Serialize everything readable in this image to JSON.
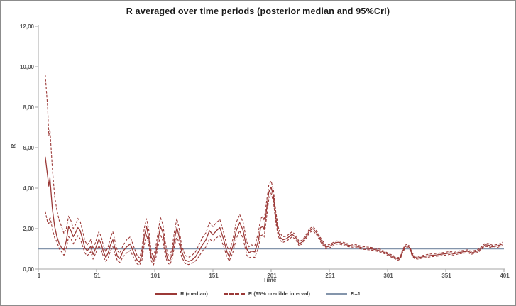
{
  "chart_data": {
    "type": "line",
    "title": "R averaged over time periods (posterior median and 95%CrI)",
    "xlabel": "Time",
    "ylabel": "R",
    "xlim": [
      1,
      401
    ],
    "ylim": [
      0,
      12
    ],
    "grid": false,
    "legend_position": "bottom",
    "x_ticks": [
      1,
      51,
      101,
      151,
      201,
      251,
      301,
      351,
      401
    ],
    "x_tick_labels": [
      "1",
      "51",
      "101",
      "151",
      "201",
      "251",
      "301",
      "351",
      "401"
    ],
    "y_ticks": [
      0,
      2,
      4,
      6,
      8,
      10,
      12
    ],
    "y_tick_labels": [
      "0,00",
      "2,00",
      "4,00",
      "6,00",
      "8,00",
      "10,00",
      "12,00"
    ],
    "legend_labels": [
      "R (median)",
      "R (95% credible interval)",
      "R=1"
    ],
    "colors": {
      "series": "#9b3937",
      "reference": "#8495ab",
      "axis": "#a6a6a6",
      "tick_text": "#595959",
      "title_text": "#1a1a1a"
    },
    "reference_line": {
      "name": "R=1",
      "value": 1
    },
    "x": [
      7,
      9,
      10,
      11,
      13,
      15,
      17,
      19,
      21,
      23,
      25,
      27,
      29,
      31,
      33,
      35,
      37,
      39,
      41,
      43,
      45,
      46,
      48,
      50,
      53,
      55,
      57,
      59,
      61,
      63,
      65,
      67,
      69,
      71,
      74,
      77,
      80,
      83,
      86,
      88,
      90,
      92,
      94,
      96,
      98,
      100,
      102,
      104,
      106,
      108,
      110,
      112,
      114,
      116,
      118,
      120,
      122,
      124,
      127,
      130,
      133,
      136,
      139,
      142,
      145,
      148,
      151,
      154,
      157,
      160,
      163,
      165,
      168,
      171,
      174,
      177,
      180,
      182,
      184,
      187,
      190,
      192,
      194,
      195,
      197,
      199,
      201,
      203,
      205,
      207,
      209,
      211,
      214,
      217,
      219,
      222,
      225,
      228,
      231,
      234,
      237,
      240,
      244,
      248,
      252,
      256,
      259,
      263,
      267,
      271,
      275,
      279,
      283,
      287,
      291,
      295,
      299,
      303,
      307,
      310,
      312,
      314,
      316,
      318,
      320,
      322,
      324,
      327,
      331,
      335,
      339,
      343,
      347,
      351,
      355,
      358,
      362,
      366,
      370,
      373,
      376,
      379,
      382,
      385,
      388,
      391,
      394,
      397,
      400
    ],
    "series": [
      {
        "name": "R (median)",
        "style": "solid",
        "values": [
          5.55,
          4.6,
          4.1,
          4.5,
          3.0,
          2.1,
          1.6,
          1.25,
          1.05,
          0.95,
          1.4,
          2.1,
          1.9,
          1.6,
          1.8,
          2.05,
          1.9,
          1.5,
          1.05,
          0.9,
          1.05,
          1.12,
          0.72,
          1.0,
          1.47,
          1.25,
          0.85,
          0.57,
          0.8,
          1.2,
          1.45,
          1.0,
          0.62,
          0.52,
          0.9,
          1.1,
          1.25,
          0.8,
          0.42,
          0.35,
          0.7,
          1.6,
          2.1,
          1.5,
          0.6,
          0.38,
          0.8,
          1.5,
          2.1,
          1.8,
          1.0,
          0.5,
          0.4,
          0.75,
          1.5,
          2.05,
          1.6,
          0.9,
          0.45,
          0.38,
          0.45,
          0.6,
          0.9,
          1.2,
          1.45,
          1.9,
          1.7,
          1.9,
          2.05,
          1.5,
          0.85,
          0.6,
          1.1,
          1.9,
          2.3,
          1.9,
          1.0,
          0.8,
          0.88,
          0.85,
          1.4,
          2.05,
          2.1,
          1.95,
          2.9,
          3.8,
          4.05,
          3.6,
          2.55,
          1.85,
          1.55,
          1.45,
          1.5,
          1.62,
          1.72,
          1.58,
          1.25,
          1.35,
          1.6,
          1.9,
          2.0,
          1.8,
          1.4,
          1.08,
          1.15,
          1.3,
          1.33,
          1.25,
          1.18,
          1.15,
          1.12,
          1.05,
          1.02,
          1.0,
          0.95,
          0.9,
          0.8,
          0.68,
          0.58,
          0.5,
          0.55,
          0.9,
          1.1,
          1.15,
          1.05,
          0.75,
          0.58,
          0.55,
          0.6,
          0.65,
          0.68,
          0.7,
          0.73,
          0.76,
          0.8,
          0.75,
          0.82,
          0.85,
          0.88,
          0.8,
          0.85,
          0.9,
          1.05,
          1.2,
          1.18,
          1.1,
          1.13,
          1.18,
          1.25
        ]
      },
      {
        "name": "R (95% credible interval) lower",
        "style": "dashed",
        "values": [
          2.85,
          2.3,
          2.25,
          2.6,
          2.0,
          1.55,
          1.35,
          1.0,
          0.85,
          0.68,
          1.0,
          1.6,
          1.5,
          1.25,
          1.45,
          1.65,
          1.5,
          1.15,
          0.8,
          0.65,
          0.8,
          0.85,
          0.5,
          0.75,
          1.15,
          0.95,
          0.6,
          0.38,
          0.55,
          0.9,
          1.1,
          0.72,
          0.4,
          0.33,
          0.62,
          0.8,
          0.92,
          0.55,
          0.25,
          0.2,
          0.45,
          1.2,
          1.7,
          1.15,
          0.4,
          0.22,
          0.55,
          1.15,
          1.7,
          1.4,
          0.7,
          0.3,
          0.22,
          0.5,
          1.15,
          1.65,
          1.25,
          0.62,
          0.28,
          0.22,
          0.28,
          0.4,
          0.62,
          0.9,
          1.1,
          1.5,
          1.35,
          1.55,
          1.65,
          1.15,
          0.6,
          0.4,
          0.8,
          1.5,
          1.9,
          1.5,
          0.7,
          0.55,
          0.6,
          0.58,
          1.05,
          1.65,
          1.7,
          1.6,
          2.5,
          3.45,
          3.75,
          3.3,
          2.3,
          1.65,
          1.4,
          1.32,
          1.38,
          1.5,
          1.6,
          1.47,
          1.15,
          1.26,
          1.5,
          1.8,
          1.9,
          1.7,
          1.3,
          1.0,
          1.07,
          1.22,
          1.25,
          1.18,
          1.11,
          1.08,
          1.05,
          0.98,
          0.96,
          0.94,
          0.89,
          0.84,
          0.74,
          0.62,
          0.52,
          0.44,
          0.49,
          0.83,
          1.02,
          1.07,
          0.97,
          0.68,
          0.52,
          0.49,
          0.54,
          0.58,
          0.61,
          0.63,
          0.66,
          0.69,
          0.73,
          0.68,
          0.75,
          0.78,
          0.81,
          0.73,
          0.78,
          0.83,
          0.98,
          1.12,
          1.1,
          1.03,
          1.05,
          1.1,
          1.17
        ]
      },
      {
        "name": "R (95% credible interval) upper",
        "style": "dashed",
        "values": [
          9.6,
          8.0,
          6.6,
          6.9,
          5.0,
          3.6,
          2.9,
          2.4,
          2.1,
          1.75,
          2.0,
          2.6,
          2.4,
          2.0,
          2.2,
          2.5,
          2.35,
          1.9,
          1.4,
          1.2,
          1.35,
          1.45,
          1.0,
          1.3,
          1.85,
          1.6,
          1.15,
          0.85,
          1.1,
          1.55,
          1.85,
          1.35,
          0.9,
          0.78,
          1.2,
          1.45,
          1.6,
          1.1,
          0.65,
          0.55,
          1.0,
          2.0,
          2.5,
          1.9,
          0.85,
          0.6,
          1.1,
          1.9,
          2.55,
          2.2,
          1.35,
          0.75,
          0.62,
          1.05,
          1.9,
          2.5,
          2.0,
          1.2,
          0.68,
          0.58,
          0.68,
          0.85,
          1.2,
          1.55,
          1.8,
          2.3,
          2.1,
          2.3,
          2.45,
          1.85,
          1.15,
          0.85,
          1.45,
          2.3,
          2.7,
          2.3,
          1.35,
          1.1,
          1.2,
          1.15,
          1.8,
          2.5,
          2.6,
          2.4,
          3.3,
          4.15,
          4.35,
          3.9,
          2.85,
          2.1,
          1.75,
          1.6,
          1.62,
          1.75,
          1.85,
          1.7,
          1.36,
          1.45,
          1.7,
          2.0,
          2.1,
          1.9,
          1.5,
          1.17,
          1.23,
          1.38,
          1.4,
          1.32,
          1.25,
          1.22,
          1.19,
          1.12,
          1.09,
          1.07,
          1.02,
          0.97,
          0.86,
          0.74,
          0.64,
          0.56,
          0.61,
          0.97,
          1.18,
          1.23,
          1.13,
          0.82,
          0.65,
          0.62,
          0.67,
          0.72,
          0.75,
          0.77,
          0.8,
          0.83,
          0.87,
          0.82,
          0.89,
          0.92,
          0.95,
          0.87,
          0.92,
          0.97,
          1.12,
          1.28,
          1.26,
          1.18,
          1.2,
          1.25,
          1.33
        ]
      }
    ]
  }
}
